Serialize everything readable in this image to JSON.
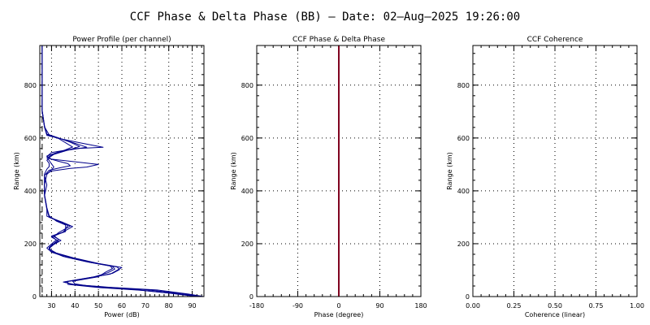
{
  "figure": {
    "title": "CCF Phase & Delta Phase (BB) — Date: 02—Aug—2025 19:26:00"
  },
  "chart_data": [
    {
      "type": "line",
      "title": "Power Profile (per channel)",
      "xlabel": "Power (dB)",
      "ylabel": "Range (km)",
      "xlim": [
        25,
        95
      ],
      "ylim": [
        0,
        950
      ],
      "xticks": [
        30,
        40,
        50,
        60,
        70,
        80,
        90
      ],
      "yticks": [
        0,
        200,
        400,
        600,
        800
      ],
      "grid": true,
      "series_color": "#00008b",
      "reference_line": {
        "x": 26,
        "style": "dashed",
        "color": "#000000"
      },
      "series": [
        {
          "points": [
            [
              95,
              0
            ],
            [
              88,
              10
            ],
            [
              75,
              25
            ],
            [
              55,
              35
            ],
            [
              40,
              45
            ],
            [
              35,
              55
            ],
            [
              45,
              70
            ],
            [
              55,
              85
            ],
            [
              58,
              100
            ],
            [
              60,
              110
            ],
            [
              50,
              125
            ],
            [
              40,
              145
            ],
            [
              32,
              165
            ],
            [
              29,
              180
            ],
            [
              30,
              195
            ],
            [
              33,
              210
            ],
            [
              30,
              225
            ],
            [
              34,
              240
            ],
            [
              39,
              265
            ],
            [
              35,
              280
            ],
            [
              29,
              300
            ],
            [
              28,
              330
            ],
            [
              27,
              380
            ],
            [
              27,
              420
            ],
            [
              27,
              460
            ],
            [
              30,
              475
            ],
            [
              38,
              485
            ],
            [
              45,
              490
            ],
            [
              50,
              500
            ],
            [
              40,
              510
            ],
            [
              30,
              520
            ],
            [
              28,
              530
            ],
            [
              30,
              545
            ],
            [
              40,
              560
            ],
            [
              52,
              565
            ],
            [
              43,
              580
            ],
            [
              35,
              595
            ],
            [
              28,
              610
            ],
            [
              27,
              640
            ],
            [
              26,
              700
            ],
            [
              26,
              800
            ],
            [
              26,
              950
            ]
          ]
        },
        {
          "points": [
            [
              94,
              0
            ],
            [
              85,
              12
            ],
            [
              70,
              26
            ],
            [
              52,
              36
            ],
            [
              38,
              47
            ],
            [
              36,
              56
            ],
            [
              47,
              72
            ],
            [
              56,
              88
            ],
            [
              59,
              102
            ],
            [
              58,
              112
            ],
            [
              48,
              128
            ],
            [
              38,
              148
            ],
            [
              31,
              167
            ],
            [
              29,
              182
            ],
            [
              31,
              197
            ],
            [
              34,
              212
            ],
            [
              31,
              227
            ],
            [
              33,
              242
            ],
            [
              38,
              267
            ],
            [
              34,
              282
            ],
            [
              29,
              302
            ],
            [
              28,
              332
            ],
            [
              27,
              382
            ],
            [
              28,
              422
            ],
            [
              27,
              458
            ],
            [
              29,
              478
            ],
            [
              34,
              488
            ],
            [
              38,
              495
            ],
            [
              37,
              503
            ],
            [
              33,
              512
            ],
            [
              29,
              522
            ],
            [
              28,
              532
            ],
            [
              34,
              550
            ],
            [
              45,
              565
            ],
            [
              40,
              580
            ],
            [
              34,
              597
            ],
            [
              29,
              612
            ],
            [
              27,
              642
            ],
            [
              26,
              702
            ],
            [
              26,
              802
            ],
            [
              26,
              950
            ]
          ]
        },
        {
          "points": [
            [
              93,
              0
            ],
            [
              83,
              11
            ],
            [
              68,
              24
            ],
            [
              50,
              34
            ],
            [
              37,
              46
            ],
            [
              37,
              57
            ],
            [
              48,
              74
            ],
            [
              54,
              90
            ],
            [
              57,
              104
            ],
            [
              56,
              114
            ],
            [
              46,
              130
            ],
            [
              36,
              150
            ],
            [
              30,
              168
            ],
            [
              28,
              184
            ],
            [
              30,
              199
            ],
            [
              32,
              214
            ],
            [
              30,
              229
            ],
            [
              35,
              244
            ],
            [
              37,
              269
            ],
            [
              33,
              284
            ],
            [
              28,
              304
            ],
            [
              28,
              334
            ],
            [
              27,
              384
            ],
            [
              27,
              424
            ],
            [
              28,
              462
            ],
            [
              30,
              480
            ],
            [
              31,
              490
            ],
            [
              30,
              502
            ],
            [
              29,
              515
            ],
            [
              28,
              525
            ],
            [
              30,
              535
            ],
            [
              35,
              552
            ],
            [
              39,
              566
            ],
            [
              36,
              582
            ],
            [
              33,
              598
            ],
            [
              28,
              613
            ],
            [
              27,
              643
            ],
            [
              26,
              703
            ],
            [
              26,
              803
            ],
            [
              26,
              950
            ]
          ]
        },
        {
          "points": [
            [
              92,
              0
            ],
            [
              80,
              13
            ],
            [
              65,
              27
            ],
            [
              48,
              37
            ],
            [
              40,
              48
            ],
            [
              39,
              58
            ],
            [
              50,
              75
            ],
            [
              53,
              92
            ],
            [
              56,
              106
            ],
            [
              55,
              116
            ],
            [
              45,
              132
            ],
            [
              35,
              152
            ],
            [
              30,
              170
            ],
            [
              29,
              186
            ],
            [
              31,
              201
            ],
            [
              33,
              216
            ],
            [
              31,
              231
            ],
            [
              36,
              246
            ],
            [
              36,
              271
            ],
            [
              32,
              286
            ],
            [
              29,
              306
            ],
            [
              28,
              336
            ],
            [
              27,
              386
            ],
            [
              27,
              426
            ],
            [
              27,
              464
            ],
            [
              28,
              482
            ],
            [
              29,
              492
            ],
            [
              29,
              504
            ],
            [
              28,
              516
            ],
            [
              29,
              526
            ],
            [
              31,
              538
            ],
            [
              37,
              554
            ],
            [
              42,
              568
            ],
            [
              38,
              584
            ],
            [
              33,
              600
            ],
            [
              28,
              615
            ],
            [
              27,
              645
            ],
            [
              26,
              705
            ],
            [
              26,
              805
            ],
            [
              26,
              950
            ]
          ]
        }
      ]
    },
    {
      "type": "line",
      "title": "CCF Phase & Delta Phase",
      "xlabel": "Phase (degree)",
      "ylabel": "Range (km)",
      "xlim": [
        -180,
        180
      ],
      "ylim": [
        0,
        950
      ],
      "xticks": [
        -180,
        -90,
        0,
        90,
        180
      ],
      "yticks": [
        0,
        200,
        400,
        600,
        800
      ],
      "grid": true,
      "series_color": "#800020",
      "series": [
        {
          "points": [
            [
              0,
              0
            ],
            [
              0,
              950
            ]
          ]
        }
      ]
    },
    {
      "type": "line",
      "title": "CCF Coherence",
      "xlabel": "Coherence (linear)",
      "ylabel": "Range (km)",
      "xlim": [
        0,
        1
      ],
      "ylim": [
        0,
        950
      ],
      "xticks": [
        "0.00",
        "0.25",
        "0.50",
        "0.75",
        "1.00"
      ],
      "yticks": [
        0,
        200,
        400,
        600,
        800
      ],
      "grid": true,
      "series": []
    }
  ]
}
